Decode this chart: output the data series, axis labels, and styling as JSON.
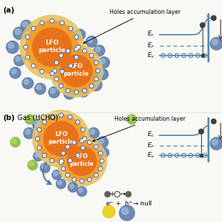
{
  "bg_color": "#f8f8f4",
  "panel_a_label": "(a)",
  "panel_b_label": "(b)  Gas (HCHO)",
  "holes_acc_label": "Holes accumulation layer",
  "lfo_label": "LFO\nparticle",
  "orange_inner": "#e8721a",
  "orange_outer": "#f0a030",
  "yellow_halo": "#e8c060",
  "blue_dot_dark": "#5878a8",
  "blue_dot_mid": "#7898c0",
  "blue_dot_light": "#a8c4e0",
  "green_dot": "#88bb44",
  "gray_ring_dot": "#6878a0",
  "diagram_blue": "#5888b0",
  "dark_gray": "#404040",
  "panel_bg": "#ffffff",
  "divider": "#dddddd"
}
